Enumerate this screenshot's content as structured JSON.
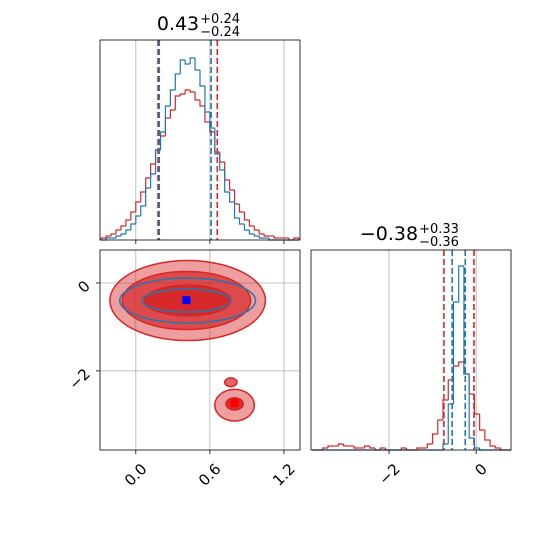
{
  "chart_data": [
    {
      "type": "histogram",
      "title": "0.43",
      "title_upper": "+0.24",
      "title_lower": "−0.24",
      "xlim": [
        -0.29,
        1.33
      ],
      "ylim": [
        0,
        100
      ],
      "xticks": [
        0,
        0.6,
        1.2
      ],
      "grid": true,
      "bins": [
        -0.28,
        -0.24,
        -0.2,
        -0.16,
        -0.12,
        -0.08,
        -0.04,
        0,
        0.04,
        0.08,
        0.12,
        0.16,
        0.2,
        0.24,
        0.28,
        0.32,
        0.36,
        0.4,
        0.44,
        0.48,
        0.52,
        0.56,
        0.6,
        0.64,
        0.68,
        0.72,
        0.76,
        0.8,
        0.84,
        0.88,
        0.92,
        0.96,
        1,
        1.04,
        1.08,
        1.12,
        1.16,
        1.2,
        1.24,
        1.28,
        1.32
      ],
      "series": [
        {
          "color": "#d62728",
          "quantiles": [
            0.18,
            0.66
          ],
          "values": [
            1,
            2,
            3,
            5,
            7,
            10,
            14,
            19,
            24,
            31,
            38,
            45,
            52,
            61,
            65,
            72,
            73,
            75,
            74,
            70,
            67,
            59,
            54,
            44,
            39,
            30,
            25,
            18,
            14,
            10,
            7,
            5,
            3,
            2,
            2,
            1,
            1,
            1,
            0,
            1
          ]
        },
        {
          "color": "#1f77b4",
          "quantiles": [
            0.19,
            0.61
          ],
          "values": [
            0,
            1,
            1,
            2,
            3,
            5,
            8,
            12,
            17,
            26,
            33,
            45,
            54,
            67,
            75,
            83,
            90,
            88,
            91,
            85,
            77,
            64,
            56,
            43,
            35,
            24,
            19,
            11,
            8,
            5,
            3,
            2,
            1,
            1,
            0,
            0,
            0,
            0,
            0,
            0
          ]
        }
      ]
    },
    {
      "type": "contour",
      "xlim": [
        -0.29,
        1.33
      ],
      "ylim": [
        -3.8,
        0.75
      ],
      "grid": true,
      "xticks": [
        {
          "value": 0,
          "label": "0.0"
        },
        {
          "value": 0.6,
          "label": "0.6"
        },
        {
          "value": 1.2,
          "label": "1.2"
        }
      ],
      "yticks": [
        0,
        {
          "value": -2,
          "label": "−2"
        }
      ],
      "series": [
        {
          "color": "#d62728",
          "filled": true,
          "contours": [
            {
              "cx": 0.42,
              "cy": -0.4,
              "rx": 0.63,
              "ry": 0.91
            },
            {
              "cx": 0.41,
              "cy": -0.4,
              "rx": 0.52,
              "ry": 0.66
            },
            {
              "cx": 0.42,
              "cy": -0.4,
              "rx": 0.35,
              "ry": 0.35
            },
            {
              "cx": 0.8,
              "cy": -2.78,
              "rx": 0.16,
              "ry": 0.36
            },
            {
              "cx": 0.77,
              "cy": -2.26,
              "rx": 0.05,
              "ry": 0.1
            },
            {
              "cx": 0.8,
              "cy": -2.75,
              "rx": 0.07,
              "ry": 0.14
            }
          ],
          "markers": [
            {
              "x": 0.8,
              "y": -2.73
            }
          ]
        },
        {
          "color": "#1f77b4",
          "filled": false,
          "contours": [
            {
              "cx": 0.42,
              "cy": -0.4,
              "rx": 0.55,
              "ry": 0.51
            },
            {
              "cx": 0.41,
              "cy": -0.4,
              "rx": 0.36,
              "ry": 0.26
            }
          ],
          "markers": [
            {
              "x": 0.41,
              "y": -0.39
            }
          ]
        }
      ]
    },
    {
      "type": "histogram",
      "title": "−0.38",
      "title_upper": "+0.33",
      "title_lower": "−0.36",
      "xlim": [
        -3.79,
        0.8
      ],
      "ylim": [
        0,
        100
      ],
      "xticks": [
        {
          "value": -2,
          "label": "−2"
        },
        0
      ],
      "grid": true,
      "bins": [
        -3.76,
        -3.64,
        -3.52,
        -3.4,
        -3.28,
        -3.16,
        -3.04,
        -2.92,
        -2.8,
        -2.68,
        -2.56,
        -2.44,
        -2.32,
        -2.2,
        -2.08,
        -1.96,
        -1.84,
        -1.72,
        -1.6,
        -1.48,
        -1.36,
        -1.24,
        -1.12,
        -1,
        -0.88,
        -0.76,
        -0.64,
        -0.52,
        -0.4,
        -0.28,
        -0.16,
        -0.04,
        0.08,
        0.2,
        0.32,
        0.44,
        0.56,
        0.68,
        0.8
      ],
      "series": [
        {
          "color": "#d62728",
          "quantiles": [
            -0.74,
            -0.05
          ],
          "values": [
            0,
            0,
            1,
            2,
            2,
            3,
            2,
            2,
            1,
            1,
            2,
            1,
            0,
            1,
            0,
            0,
            0,
            1,
            0,
            0,
            1,
            1,
            3,
            8,
            15,
            25,
            35,
            42,
            44,
            38,
            28,
            18,
            10,
            5,
            2,
            1,
            0,
            0
          ]
        },
        {
          "color": "#1f77b4",
          "quantiles": [
            -0.55,
            -0.25
          ],
          "values": [
            0,
            0,
            0,
            0,
            0,
            0,
            0,
            0,
            0,
            0,
            0,
            0,
            0,
            0,
            0,
            0,
            0,
            0,
            0,
            0,
            0,
            0,
            0,
            0,
            0,
            3,
            23,
            74,
            92,
            38,
            6,
            1,
            0,
            0,
            0,
            0,
            0,
            0
          ]
        }
      ]
    }
  ]
}
